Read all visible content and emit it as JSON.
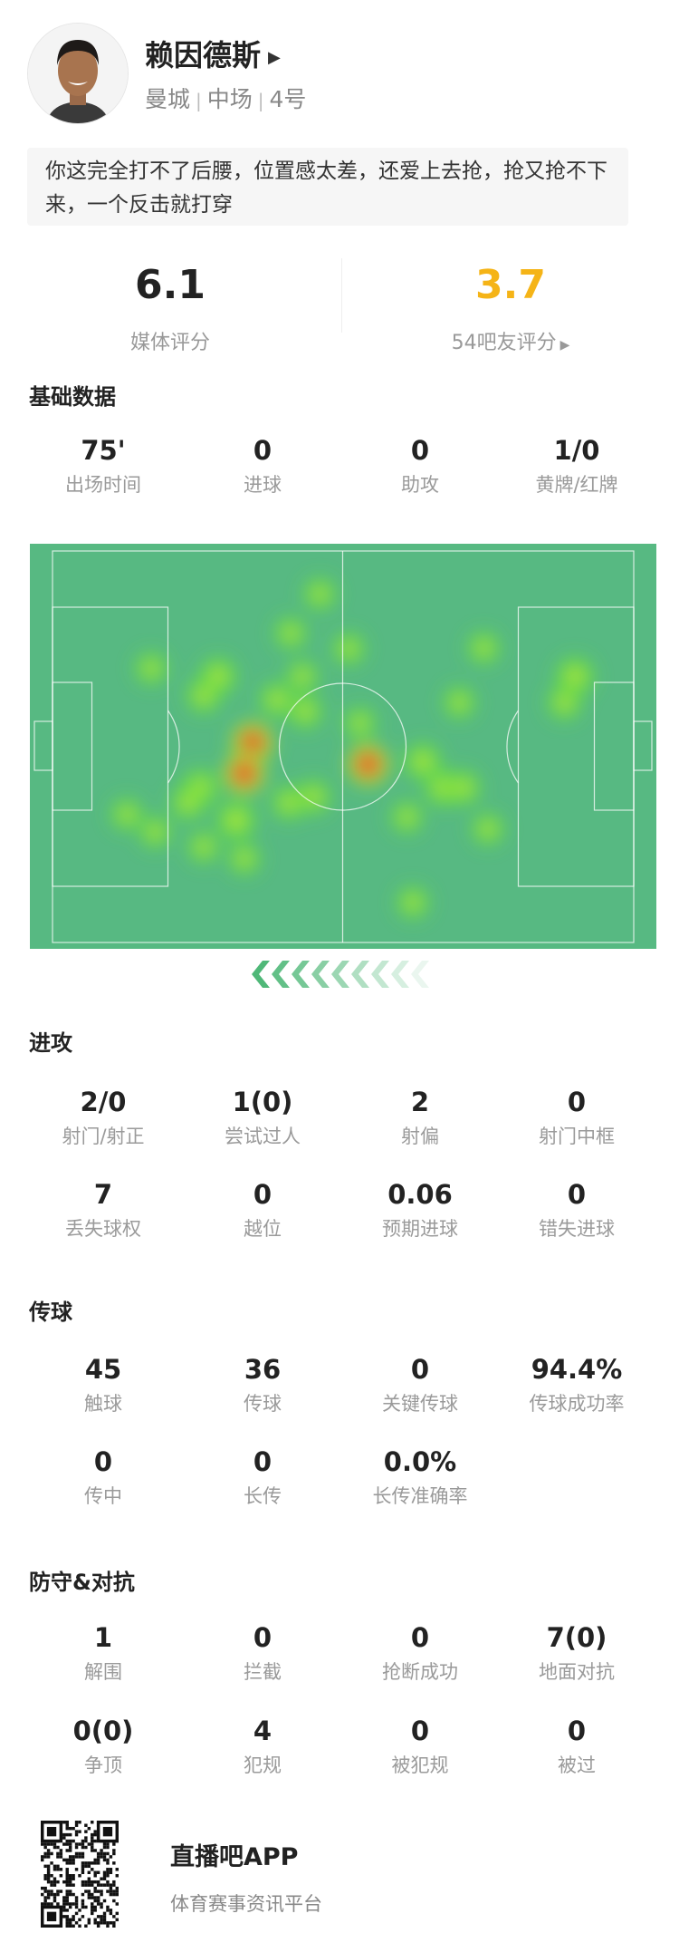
{
  "player": {
    "name": "赖因德斯",
    "team": "曼城",
    "position": "中场",
    "number": "4号",
    "comment": "你这完全打不了后腰，位置感太差，还爱上去抢，抢又抢不下来，一个反击就打穿"
  },
  "ratings": {
    "media": {
      "value": "6.1",
      "label": "媒体评分"
    },
    "fans": {
      "value": "3.7",
      "label": "54吧友评分",
      "color": "#f5b417"
    }
  },
  "sections": {
    "basic": {
      "title": "基础数据",
      "rows": [
        [
          {
            "value": "75'",
            "label": "出场时间"
          },
          {
            "value": "0",
            "label": "进球"
          },
          {
            "value": "0",
            "label": "助攻"
          },
          {
            "value": "1/0",
            "label": "黄牌/红牌"
          }
        ]
      ]
    },
    "attack": {
      "title": "进攻",
      "rows": [
        [
          {
            "value": "2/0",
            "label": "射门/射正"
          },
          {
            "value": "1(0)",
            "label": "尝试过人"
          },
          {
            "value": "2",
            "label": "射偏"
          },
          {
            "value": "0",
            "label": "射门中框"
          }
        ],
        [
          {
            "value": "7",
            "label": "丢失球权"
          },
          {
            "value": "0",
            "label": "越位"
          },
          {
            "value": "0.06",
            "label": "预期进球"
          },
          {
            "value": "0",
            "label": "错失进球"
          }
        ]
      ]
    },
    "passing": {
      "title": "传球",
      "rows": [
        [
          {
            "value": "45",
            "label": "触球"
          },
          {
            "value": "36",
            "label": "传球"
          },
          {
            "value": "0",
            "label": "关键传球"
          },
          {
            "value": "94.4%",
            "label": "传球成功率"
          }
        ],
        [
          {
            "value": "0",
            "label": "传中"
          },
          {
            "value": "0",
            "label": "长传"
          },
          {
            "value": "0.0%",
            "label": "长传准确率"
          }
        ]
      ]
    },
    "defense": {
      "title": "防守&对抗",
      "rows": [
        [
          {
            "value": "1",
            "label": "解围"
          },
          {
            "value": "0",
            "label": "拦截"
          },
          {
            "value": "0",
            "label": "抢断成功"
          },
          {
            "value": "7(0)",
            "label": "地面对抗"
          }
        ],
        [
          {
            "value": "0(0)",
            "label": "争顶"
          },
          {
            "value": "4",
            "label": "犯规"
          },
          {
            "value": "0",
            "label": "被犯规"
          },
          {
            "value": "0",
            "label": "被过"
          }
        ]
      ]
    }
  },
  "heatmap": {
    "pitch_color": "#57b982",
    "attack_direction": "left",
    "points_pitch_units_100x100": [
      [
        46,
        11,
        0.5
      ],
      [
        41,
        21,
        0.5
      ],
      [
        51,
        25,
        0.5
      ],
      [
        17,
        30,
        0.5
      ],
      [
        28.5,
        32,
        0.7
      ],
      [
        26,
        37,
        0.6
      ],
      [
        43,
        32,
        0.5
      ],
      [
        38.6,
        38,
        0.6
      ],
      [
        43.5,
        41,
        0.6
      ],
      [
        34.4,
        49,
        1.0
      ],
      [
        33,
        56.8,
        1.0
      ],
      [
        25.4,
        60.5,
        0.7
      ],
      [
        23.3,
        64.3,
        0.6
      ],
      [
        31.6,
        68.8,
        0.8
      ],
      [
        40.7,
        64.3,
        0.6
      ],
      [
        44.9,
        62.8,
        0.6
      ],
      [
        12.8,
        67.3,
        0.5
      ],
      [
        17.7,
        71.8,
        0.5
      ],
      [
        26,
        75.6,
        0.5
      ],
      [
        33,
        78.6,
        0.5
      ],
      [
        52.9,
        44,
        0.5
      ],
      [
        54.3,
        54.5,
        1.0
      ],
      [
        63.7,
        53.8,
        0.7
      ],
      [
        67.2,
        60.5,
        0.7
      ],
      [
        70.7,
        60.5,
        0.6
      ],
      [
        61,
        68,
        0.5
      ],
      [
        70,
        38.7,
        0.5
      ],
      [
        74.2,
        24.8,
        0.5
      ],
      [
        74.9,
        71,
        0.5
      ],
      [
        62,
        89.8,
        0.5
      ],
      [
        89.9,
        32,
        0.75
      ],
      [
        88.1,
        38.7,
        0.6
      ]
    ]
  },
  "footer": {
    "app_name": "直播吧APP",
    "tagline": "体育赛事资讯平台"
  }
}
